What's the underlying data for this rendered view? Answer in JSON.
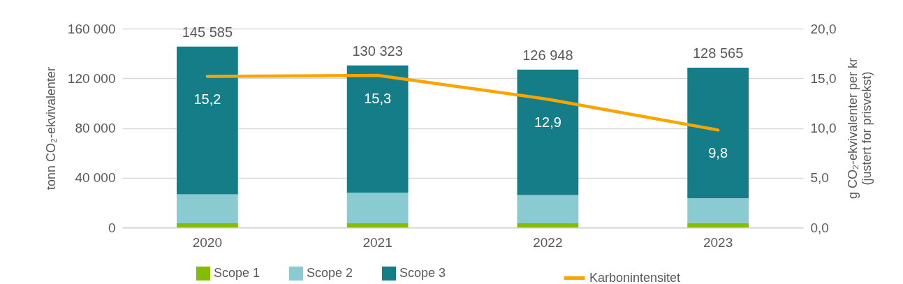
{
  "chart_data": {
    "type": "bar",
    "stacked": true,
    "categories": [
      "2020",
      "2021",
      "2022",
      "2023"
    ],
    "series": [
      {
        "name": "Scope 1",
        "color": "#84bd00",
        "values": [
          3300,
          3300,
          3300,
          3700
        ]
      },
      {
        "name": "Scope 2",
        "color": "#8acbd1",
        "values": [
          23300,
          24600,
          22800,
          19900
        ]
      },
      {
        "name": "Scope 3",
        "color": "#147d87",
        "values": [
          118985,
          102423,
          100848,
          104965
        ]
      },
      {
        "name": "Karbonintensitet",
        "type": "line",
        "axis": "y2",
        "color": "#f8a500",
        "values": [
          15.2,
          15.3,
          12.9,
          9.8
        ],
        "value_labels": [
          "15,2",
          "15,3",
          "12,9",
          "9,8"
        ]
      }
    ],
    "totals": [
      "145 585",
      "130 323",
      "126 948",
      "128 565"
    ],
    "ylabel": "tonn CO₂-ekvivalenter",
    "y2label": "g CO₂-ekvivalenter per kr\n(justert for prisvekst)",
    "ylim": [
      0,
      160000
    ],
    "yticks": [
      {
        "value": 0,
        "label": "0"
      },
      {
        "value": 40000,
        "label": "40 000"
      },
      {
        "value": 80000,
        "label": "80 000"
      },
      {
        "value": 120000,
        "label": "120 000"
      },
      {
        "value": 160000,
        "label": "160 000"
      }
    ],
    "y2lim": [
      0,
      20
    ],
    "y2ticks": [
      {
        "value": 0,
        "label": "0,0"
      },
      {
        "value": 5,
        "label": "5,0"
      },
      {
        "value": 10,
        "label": "10,0"
      },
      {
        "value": 15,
        "label": "15,0"
      },
      {
        "value": 20,
        "label": "20,0"
      }
    ],
    "grid": "y",
    "legend": "bottom"
  }
}
